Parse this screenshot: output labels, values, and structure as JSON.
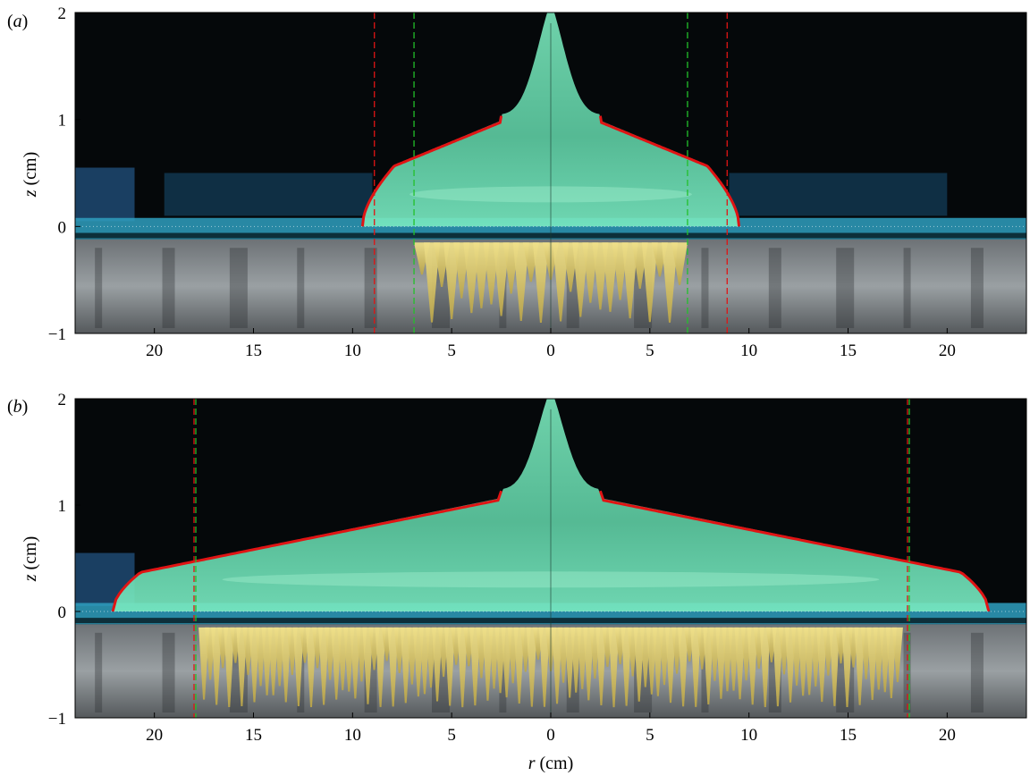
{
  "figure": {
    "panels": [
      {
        "label": "(a)",
        "label_letter": "a",
        "ylabel_var": "z",
        "ylabel_unit": " (cm)",
        "yticks": [
          "2",
          "1",
          "0",
          "−1"
        ],
        "xticks": [
          "20",
          "15",
          "10",
          "5",
          "0",
          "5",
          "10",
          "15",
          "20"
        ],
        "xtick_values": [
          -20,
          -15,
          -10,
          -5,
          0,
          5,
          10,
          15,
          20
        ],
        "ytick_values": [
          2,
          1,
          0,
          -1
        ],
        "red_dashed_r": [
          8.9
        ],
        "green_dashed_r": [
          6.9
        ],
        "front_r": 9.5,
        "profile_height_at_r2_5": 1.05,
        "apex_height": 1.9
      },
      {
        "label": "(b)",
        "label_letter": "b",
        "ylabel_var": "z",
        "ylabel_unit": " (cm)",
        "yticks": [
          "2",
          "1",
          "0",
          "−1"
        ],
        "xticks": [
          "20",
          "15",
          "10",
          "5",
          "0",
          "5",
          "10",
          "15",
          "20"
        ],
        "xtick_values": [
          -20,
          -15,
          -10,
          -5,
          0,
          5,
          10,
          15,
          20
        ],
        "ytick_values": [
          2,
          1,
          0,
          -1
        ],
        "red_dashed_r": [
          18.0
        ],
        "green_dashed_r": [
          18.0
        ],
        "front_r": 22.1,
        "profile_height_at_r2_5": 1.15,
        "apex_height": 1.9
      }
    ],
    "xlabel_var": "r",
    "xlabel_unit": " (cm)",
    "x_range": [
      -24,
      24
    ],
    "y_range": [
      -1,
      2
    ],
    "colors": {
      "background": "#05080a",
      "fluid": "#5fd9a8",
      "fluid_edge": "#8ff0c4",
      "substrate_top": "#2f9fbf",
      "substrate_band": "#0d2f3a",
      "porous": "#8a8f92",
      "fingers": "#d8c56a",
      "fit_curve": "#e01414",
      "red_dash": "#e01414",
      "green_dash": "#22c02a"
    }
  }
}
